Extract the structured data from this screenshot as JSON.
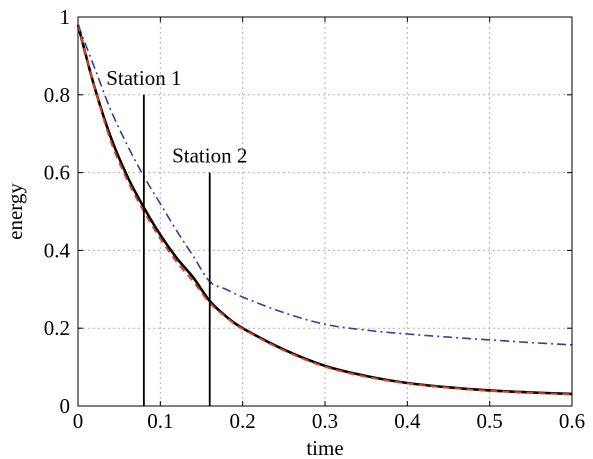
{
  "chart_data": {
    "type": "line",
    "title": "",
    "xlabel": "time",
    "ylabel": "energy",
    "xlim": [
      0,
      0.6
    ],
    "ylim": [
      0,
      1
    ],
    "xticks": [
      0,
      0.1,
      0.2,
      0.3,
      0.4,
      0.5,
      0.6
    ],
    "yticks": [
      0,
      0.2,
      0.4,
      0.6,
      0.8,
      1
    ],
    "xtick_labels": [
      "0",
      "0.1",
      "0.2",
      "0.3",
      "0.4",
      "0.5",
      "0.6"
    ],
    "ytick_labels": [
      "0",
      "0.2",
      "0.4",
      "0.6",
      "0.8",
      "1"
    ],
    "grid": true,
    "x": [
      0,
      0.02,
      0.04,
      0.06,
      0.08,
      0.1,
      0.12,
      0.14,
      0.16,
      0.18,
      0.2,
      0.25,
      0.3,
      0.35,
      0.4,
      0.45,
      0.5,
      0.55,
      0.6
    ],
    "series": [
      {
        "color": "#000000",
        "style": "solid",
        "values": [
          0.98,
          0.82,
          0.69,
          0.59,
          0.51,
          0.44,
          0.38,
          0.33,
          0.27,
          0.23,
          0.2,
          0.145,
          0.103,
          0.077,
          0.059,
          0.048,
          0.04,
          0.035,
          0.031
        ]
      },
      {
        "color": "#e0401a",
        "style": "dashed",
        "values": [
          0.98,
          0.82,
          0.68,
          0.58,
          0.5,
          0.43,
          0.37,
          0.32,
          0.265,
          0.228,
          0.198,
          0.143,
          0.101,
          0.075,
          0.058,
          0.047,
          0.039,
          0.034,
          0.03
        ]
      },
      {
        "color": "#3a3aa0",
        "style": "dashdot",
        "values": [
          0.98,
          0.87,
          0.76,
          0.67,
          0.59,
          0.52,
          0.45,
          0.385,
          0.32,
          0.3,
          0.28,
          0.24,
          0.21,
          0.195,
          0.185,
          0.177,
          0.17,
          0.163,
          0.157
        ]
      }
    ],
    "annotations": [
      {
        "text": "Station 1",
        "x": 0.08,
        "y_top": 0.8
      },
      {
        "text": "Station 2",
        "x": 0.16,
        "y_top": 0.6
      }
    ]
  }
}
